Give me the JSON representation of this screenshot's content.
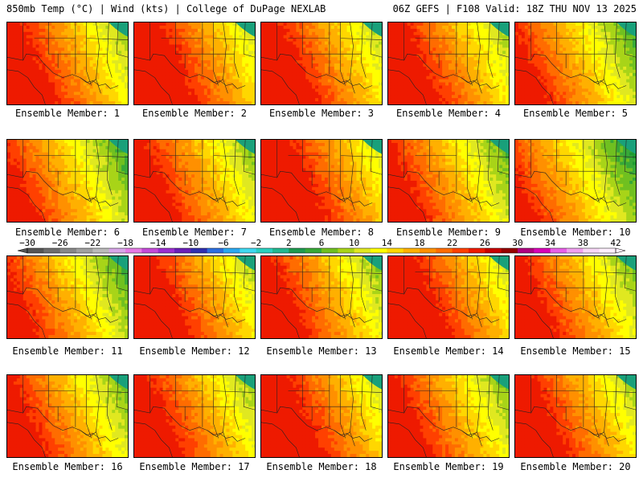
{
  "header": {
    "left": "850mb Temp (°C) | Wind (kts) | College of DuPage NEXLAB",
    "right": "06Z GEFS | F108 Valid: 18Z THU NOV 13 2025"
  },
  "members": [
    {
      "label": "Ensemble Member: 1",
      "warmth": 0.62
    },
    {
      "label": "Ensemble Member: 2",
      "warmth": 0.7
    },
    {
      "label": "Ensemble Member: 3",
      "warmth": 0.66
    },
    {
      "label": "Ensemble Member: 4",
      "warmth": 0.64
    },
    {
      "label": "Ensemble Member: 5",
      "warmth": 0.52
    },
    {
      "label": "Ensemble Member: 6",
      "warmth": 0.5
    },
    {
      "label": "Ensemble Member: 7",
      "warmth": 0.6
    },
    {
      "label": "Ensemble Member: 8",
      "warmth": 0.72
    },
    {
      "label": "Ensemble Member: 9",
      "warmth": 0.54
    },
    {
      "label": "Ensemble Member: 10",
      "warmth": 0.44
    },
    {
      "label": "Ensemble Member: 11",
      "warmth": 0.5
    },
    {
      "label": "Ensemble Member: 12",
      "warmth": 0.66
    },
    {
      "label": "Ensemble Member: 13",
      "warmth": 0.6
    },
    {
      "label": "Ensemble Member: 14",
      "warmth": 0.7
    },
    {
      "label": "Ensemble Member: 15",
      "warmth": 0.58
    },
    {
      "label": "Ensemble Member: 16",
      "warmth": 0.56
    },
    {
      "label": "Ensemble Member: 17",
      "warmth": 0.62
    },
    {
      "label": "Ensemble Member: 18",
      "warmth": 0.7
    },
    {
      "label": "Ensemble Member: 19",
      "warmth": 0.58
    },
    {
      "label": "Ensemble Member: 20",
      "warmth": 0.64
    }
  ],
  "colorbar": {
    "unit": "°C",
    "min": -30,
    "max": 42,
    "step": 2,
    "tick_labels": [
      "-30",
      "-26",
      "-22",
      "-18",
      "-14",
      "-10",
      "-6",
      "-2",
      "2",
      "6",
      "10",
      "14",
      "18",
      "22",
      "26",
      "30",
      "34",
      "38",
      "42"
    ],
    "colors": [
      "#555555",
      "#6e6e6e",
      "#888888",
      "#a0a0a0",
      "#bbbbbb",
      "#d8a6e8",
      "#e67ae6",
      "#c44ad8",
      "#9a2fd0",
      "#6a1fb8",
      "#2f2fb0",
      "#2c6fe0",
      "#2aa8f0",
      "#40d8f0",
      "#2ad0c0",
      "#22b890",
      "#1e9a50",
      "#37a838",
      "#70c020",
      "#a8d418",
      "#e0e820",
      "#ffff00",
      "#ffd700",
      "#ffb000",
      "#ff9000",
      "#ff6c00",
      "#ff4000",
      "#ee1a00",
      "#c80000",
      "#960000",
      "#b00080",
      "#d800b8",
      "#e860e8",
      "#f0a0f0",
      "#f8d8f8",
      "#fff0ff"
    ]
  }
}
